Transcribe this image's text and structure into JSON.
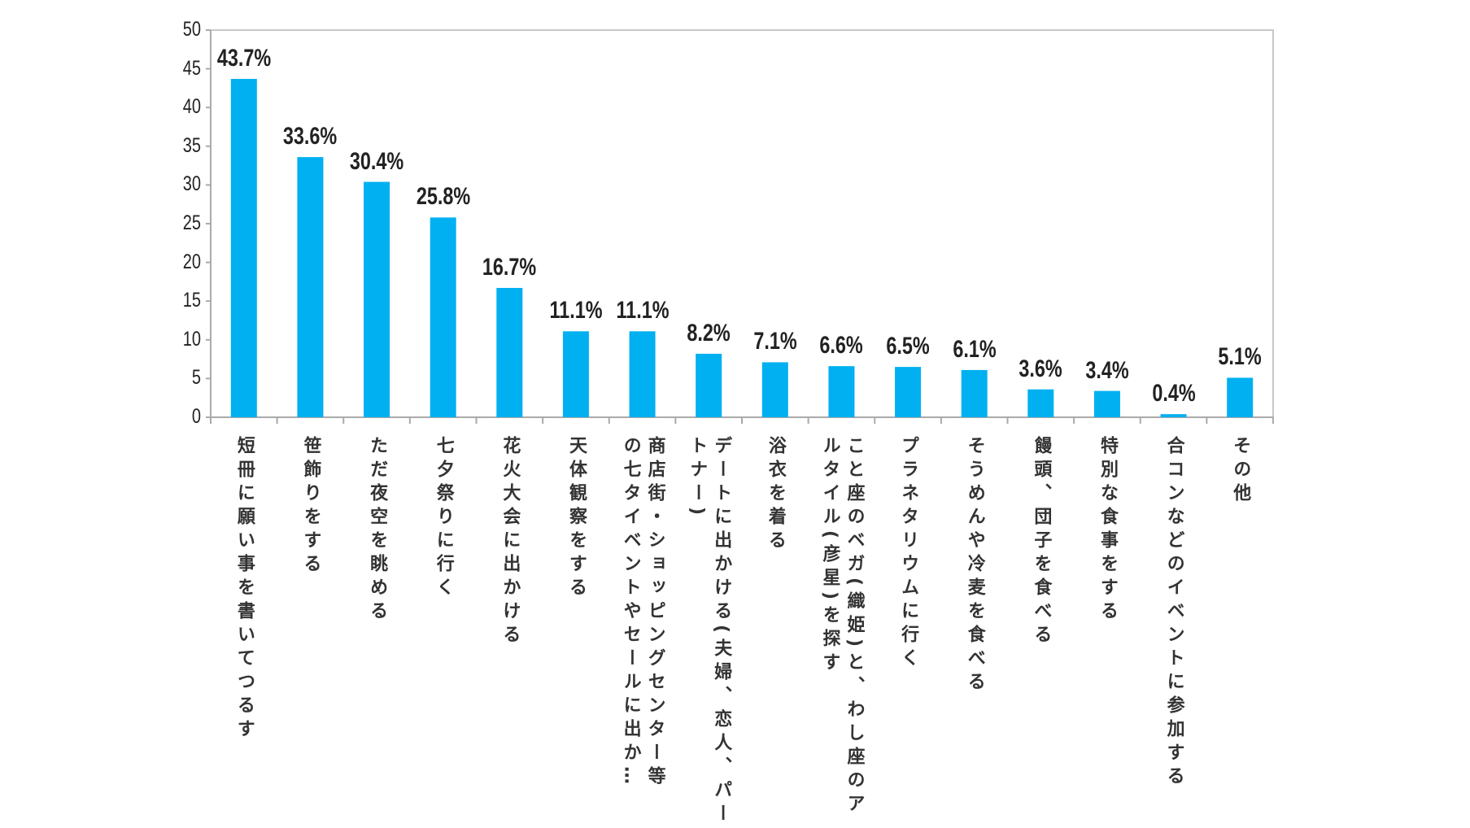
{
  "chart_data": {
    "type": "bar",
    "title": "",
    "xlabel": "",
    "ylabel": "",
    "ylim": [
      0,
      50
    ],
    "yticks": [
      0,
      5,
      10,
      15,
      20,
      25,
      30,
      35,
      40,
      45,
      50
    ],
    "grid": false,
    "bar_color": "#00b0f0",
    "categories": [
      [
        "短冊に願い事を書いてつるす"
      ],
      [
        "笹飾りをする"
      ],
      [
        "ただ夜空を眺める"
      ],
      [
        "七夕祭りに行く"
      ],
      [
        "花火大会に出かける"
      ],
      [
        "天体観察をする"
      ],
      [
        "商店街・ショッピングセンター等",
        "の七タイベントやセールに出か…"
      ],
      [
        "デートに出かける(夫婦、恋人、パー",
        "トナー)"
      ],
      [
        "浴衣を着る"
      ],
      [
        "こと座のベガ(織姫)と、わし座のア",
        "ルタイル(彦星)を探す"
      ],
      [
        "プラネタリウムに行く"
      ],
      [
        "そうめんや冷麦を食べる"
      ],
      [
        "饅頭、団子を食べる"
      ],
      [
        "特別な食事をする"
      ],
      [
        "合コンなどのイベントに参加する"
      ],
      [
        "その他"
      ]
    ],
    "values": [
      43.7,
      33.6,
      30.4,
      25.8,
      16.7,
      11.1,
      11.1,
      8.2,
      7.1,
      6.6,
      6.5,
      6.1,
      3.6,
      3.4,
      0.4,
      5.1
    ],
    "data_labels": [
      "43.7%",
      "33.6%",
      "30.4%",
      "25.8%",
      "16.7%",
      "11.1%",
      "11.1%",
      "8.2%",
      "7.1%",
      "6.6%",
      "6.5%",
      "6.1%",
      "3.6%",
      "3.4%",
      "0.4%",
      "5.1%"
    ]
  }
}
